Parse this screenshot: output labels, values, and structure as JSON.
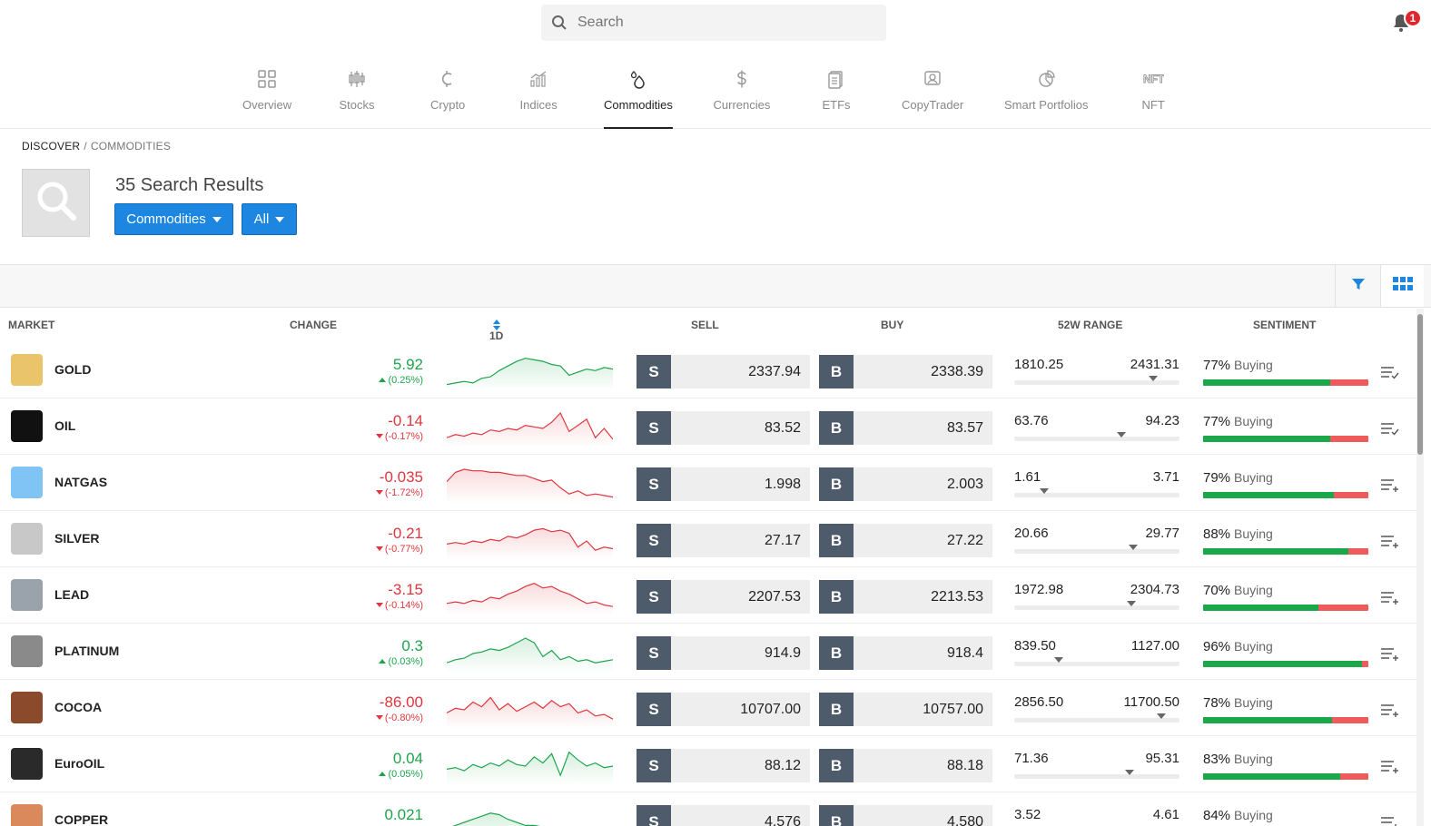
{
  "search": {
    "placeholder": "Search"
  },
  "notifications": {
    "count": "1"
  },
  "nav": [
    {
      "label": "Overview",
      "icon": "grid-icon"
    },
    {
      "label": "Stocks",
      "icon": "candlestick-icon"
    },
    {
      "label": "Crypto",
      "icon": "crypto-icon"
    },
    {
      "label": "Indices",
      "icon": "indices-chart-icon"
    },
    {
      "label": "Commodities",
      "icon": "drop-icon",
      "active": true
    },
    {
      "label": "Currencies",
      "icon": "dollar-icon"
    },
    {
      "label": "ETFs",
      "icon": "etf-icon"
    },
    {
      "label": "CopyTrader",
      "icon": "copytrader-icon"
    },
    {
      "label": "Smart Portfolios",
      "icon": "pie-icon"
    },
    {
      "label": "NFT",
      "icon": "nft-icon"
    }
  ],
  "breadcrumb": {
    "root": "DISCOVER",
    "separator": "/",
    "current": "COMMODITIES"
  },
  "results": {
    "title": "35 Search Results",
    "filter_type": "Commodities",
    "filter_scope": "All"
  },
  "table": {
    "headers": {
      "market": "MARKET",
      "change": "CHANGE",
      "period": "1D",
      "sell": "SELL",
      "buy": "BUY",
      "range": "52W RANGE",
      "sentiment": "SENTIMENT"
    },
    "sell_tag": "S",
    "buy_tag": "B",
    "rows": [
      {
        "name": "GOLD",
        "change": "5.92",
        "change_pct": "(0.25%)",
        "dir": "up",
        "sell": "2337.94",
        "buy": "2338.39",
        "low": "1810.25",
        "high": "2431.31",
        "range_pos": 0.84,
        "sentiment_pct": "77%",
        "sentiment_label": "Buying",
        "sentiment_value": 0.77,
        "logo_color": "#e9c46a",
        "watch_icon": "watchlist-check-icon",
        "spark": [
          0.1,
          0.15,
          0.2,
          0.15,
          0.3,
          0.35,
          0.55,
          0.7,
          0.85,
          0.95,
          0.9,
          0.85,
          0.75,
          0.7,
          0.4,
          0.5,
          0.6,
          0.55,
          0.65,
          0.6
        ]
      },
      {
        "name": "OIL",
        "change": "-0.14",
        "change_pct": "(-0.17%)",
        "dir": "down",
        "sell": "83.52",
        "buy": "83.57",
        "low": "63.76",
        "high": "94.23",
        "range_pos": 0.65,
        "sentiment_pct": "77%",
        "sentiment_label": "Buying",
        "sentiment_value": 0.77,
        "logo_color": "#111111",
        "watch_icon": "watchlist-check-icon",
        "spark": [
          0.2,
          0.3,
          0.25,
          0.35,
          0.3,
          0.45,
          0.4,
          0.5,
          0.45,
          0.6,
          0.55,
          0.5,
          0.7,
          1.0,
          0.4,
          0.6,
          0.8,
          0.2,
          0.5,
          0.15
        ]
      },
      {
        "name": "NATGAS",
        "change": "-0.035",
        "change_pct": "(-1.72%)",
        "dir": "down",
        "sell": "1.998",
        "buy": "2.003",
        "low": "1.61",
        "high": "3.71",
        "range_pos": 0.18,
        "sentiment_pct": "79%",
        "sentiment_label": "Buying",
        "sentiment_value": 0.79,
        "logo_color": "#7fc4f5",
        "watch_icon": "watchlist-add-icon",
        "spark": [
          0.6,
          0.9,
          1.0,
          0.95,
          0.95,
          0.9,
          0.9,
          0.85,
          0.8,
          0.8,
          0.7,
          0.6,
          0.65,
          0.4,
          0.2,
          0.3,
          0.15,
          0.2,
          0.15,
          0.1
        ]
      },
      {
        "name": "SILVER",
        "change": "-0.21",
        "change_pct": "(-0.77%)",
        "dir": "down",
        "sell": "27.17",
        "buy": "27.22",
        "low": "20.66",
        "high": "29.77",
        "range_pos": 0.72,
        "sentiment_pct": "88%",
        "sentiment_label": "Buying",
        "sentiment_value": 0.88,
        "logo_color": "#c8c8c8",
        "watch_icon": "watchlist-add-icon",
        "spark": [
          0.4,
          0.45,
          0.4,
          0.5,
          0.45,
          0.55,
          0.5,
          0.65,
          0.6,
          0.7,
          0.85,
          0.9,
          0.8,
          0.85,
          0.75,
          0.3,
          0.5,
          0.2,
          0.3,
          0.25
        ]
      },
      {
        "name": "LEAD",
        "change": "-3.15",
        "change_pct": "(-0.14%)",
        "dir": "down",
        "sell": "2207.53",
        "buy": "2213.53",
        "low": "1972.98",
        "high": "2304.73",
        "range_pos": 0.71,
        "sentiment_pct": "70%",
        "sentiment_label": "Buying",
        "sentiment_value": 0.7,
        "logo_color": "#9aa3ab",
        "watch_icon": "watchlist-add-icon",
        "spark": [
          0.3,
          0.35,
          0.3,
          0.4,
          0.35,
          0.5,
          0.45,
          0.6,
          0.7,
          0.85,
          0.95,
          0.8,
          0.85,
          0.7,
          0.6,
          0.45,
          0.3,
          0.35,
          0.25,
          0.2
        ]
      },
      {
        "name": "PLATINUM",
        "change": "0.3",
        "change_pct": "(0.03%)",
        "dir": "up",
        "sell": "914.9",
        "buy": "918.4",
        "low": "839.50",
        "high": "1127.00",
        "range_pos": 0.27,
        "sentiment_pct": "96%",
        "sentiment_label": "Buying",
        "sentiment_value": 0.96,
        "logo_color": "#8a8a8a",
        "watch_icon": "watchlist-add-icon",
        "spark": [
          0.2,
          0.3,
          0.35,
          0.5,
          0.55,
          0.65,
          0.6,
          0.7,
          0.85,
          1.0,
          0.85,
          0.4,
          0.6,
          0.3,
          0.4,
          0.25,
          0.3,
          0.2,
          0.25,
          0.3
        ]
      },
      {
        "name": "COCOA",
        "change": "-86.00",
        "change_pct": "(-0.80%)",
        "dir": "down",
        "sell": "10707.00",
        "buy": "10757.00",
        "low": "2856.50",
        "high": "11700.50",
        "range_pos": 0.89,
        "sentiment_pct": "78%",
        "sentiment_label": "Buying",
        "sentiment_value": 0.78,
        "logo_color": "#8b4a2b",
        "watch_icon": "watchlist-add-icon",
        "spark": [
          0.4,
          0.55,
          0.5,
          0.75,
          0.6,
          0.9,
          0.5,
          0.7,
          0.45,
          0.6,
          0.75,
          0.55,
          0.8,
          0.6,
          0.7,
          0.4,
          0.5,
          0.3,
          0.35,
          0.2
        ]
      },
      {
        "name": "EuroOIL",
        "change": "0.04",
        "change_pct": "(0.05%)",
        "dir": "up",
        "sell": "88.12",
        "buy": "88.18",
        "low": "71.36",
        "high": "95.31",
        "range_pos": 0.7,
        "sentiment_pct": "83%",
        "sentiment_label": "Buying",
        "sentiment_value": 0.83,
        "logo_color": "#2a2a2a",
        "watch_icon": "watchlist-add-icon",
        "spark": [
          0.4,
          0.45,
          0.35,
          0.55,
          0.45,
          0.6,
          0.5,
          0.7,
          0.55,
          0.5,
          0.8,
          0.6,
          0.9,
          0.2,
          0.95,
          0.7,
          0.5,
          0.6,
          0.45,
          0.5
        ]
      },
      {
        "name": "COPPER",
        "change": "0.021",
        "change_pct": "",
        "dir": "up",
        "sell": "4.576",
        "buy": "4.580",
        "low": "3.52",
        "high": "4.61",
        "range_pos": 0.96,
        "sentiment_pct": "84%",
        "sentiment_label": "Buying",
        "sentiment_value": 0.84,
        "logo_color": "#d9895b",
        "watch_icon": "watchlist-add-icon",
        "spark": [
          0.3,
          0.4,
          0.5,
          0.6,
          0.7,
          0.8,
          0.75,
          0.6,
          0.5,
          0.4,
          0.4,
          0.35,
          0.3,
          0.3,
          0.3,
          0.3,
          0.3,
          0.3,
          0.3,
          0.3
        ]
      }
    ]
  },
  "colors": {
    "accent": "#1c86e0",
    "positive": "#1ea54c",
    "negative": "#e0363f",
    "trade_tag": "#4e5b6a"
  }
}
